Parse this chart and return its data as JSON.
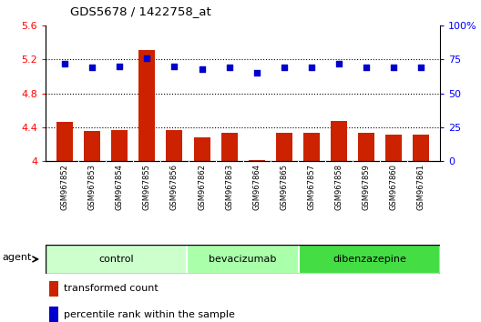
{
  "title": "GDS5678 / 1422758_at",
  "samples": [
    "GSM967852",
    "GSM967853",
    "GSM967854",
    "GSM967855",
    "GSM967856",
    "GSM967862",
    "GSM967863",
    "GSM967864",
    "GSM967865",
    "GSM967857",
    "GSM967858",
    "GSM967859",
    "GSM967860",
    "GSM967861"
  ],
  "bar_values": [
    4.46,
    4.35,
    4.37,
    5.31,
    4.37,
    4.28,
    4.33,
    4.01,
    4.33,
    4.33,
    4.47,
    4.33,
    4.31,
    4.31
  ],
  "dot_values": [
    72,
    69,
    70,
    76,
    70,
    68,
    69,
    65,
    69,
    69,
    72,
    69,
    69,
    69
  ],
  "bar_color": "#cc2200",
  "dot_color": "#0000cc",
  "ylim_left": [
    4.0,
    5.6
  ],
  "ylim_right": [
    0,
    100
  ],
  "yticks_left": [
    4.0,
    4.4,
    4.8,
    5.2,
    5.6
  ],
  "ytick_labels_left": [
    "4",
    "4.4",
    "4.8",
    "5.2",
    "5.6"
  ],
  "yticks_right": [
    0,
    25,
    50,
    75,
    100
  ],
  "ytick_labels_right": [
    "0",
    "25",
    "50",
    "75",
    "100%"
  ],
  "groups": [
    {
      "label": "control",
      "start": 0,
      "end": 5,
      "color": "#ccffcc"
    },
    {
      "label": "bevacizumab",
      "start": 5,
      "end": 9,
      "color": "#aaffaa"
    },
    {
      "label": "dibenzazepine",
      "start": 9,
      "end": 14,
      "color": "#44dd44"
    }
  ],
  "agent_label": "agent",
  "legend_bar_label": "transformed count",
  "legend_dot_label": "percentile rank within the sample",
  "dotted_gridlines": [
    4.4,
    4.8,
    5.2
  ],
  "bg_color": "#ffffff",
  "plot_bg_color": "#ffffff",
  "tick_bg_color": "#d8d8d8"
}
